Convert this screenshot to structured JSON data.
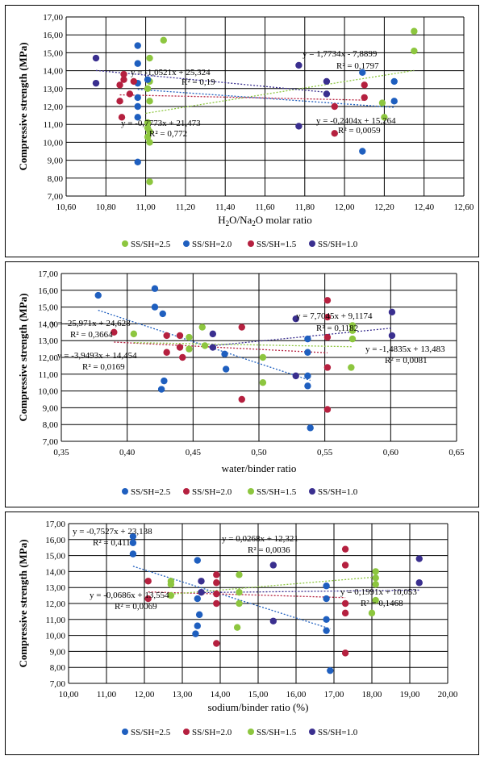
{
  "colors": {
    "ss25": "#8dc63f",
    "ss20": "#1f5fbf",
    "ss15": "#b5203f",
    "ss10": "#3a2f8f"
  },
  "chart_data": [
    {
      "type": "scatter",
      "xlabel": "H2O/Na2O molar ratio",
      "ylabel": "Compressive strength (MPa)",
      "xlim": [
        10.6,
        12.6
      ],
      "ylim": [
        7.0,
        17.0
      ],
      "x_ticks": [
        "10,60",
        "10,80",
        "11,00",
        "11,20",
        "11,40",
        "11,60",
        "11,80",
        "12,00",
        "12,20",
        "12,40",
        "12,60"
      ],
      "y_ticks": [
        "7,00",
        "8,00",
        "9,00",
        "10,00",
        "11,00",
        "12,00",
        "13,00",
        "14,00",
        "15,00",
        "16,00",
        "17,00"
      ],
      "legend": [
        "SS/SH=2.5",
        "SS/SH=2.0",
        "SS/SH=1.5",
        "SS/SH=1.0"
      ],
      "series": [
        {
          "name": "SS/SH=2.5",
          "color_key": "ss25",
          "points": [
            [
              11.09,
              15.7
            ],
            [
              11.02,
              14.7
            ],
            [
              11.02,
              13.4
            ],
            [
              11.01,
              13.0
            ],
            [
              11.02,
              12.3
            ],
            [
              11.01,
              11.1
            ],
            [
              11.01,
              10.8
            ],
            [
              11.02,
              10.6
            ],
            [
              11.01,
              10.3
            ],
            [
              11.02,
              10.0
            ],
            [
              11.02,
              7.8
            ],
            [
              12.35,
              16.2
            ],
            [
              12.35,
              15.1
            ],
            [
              12.19,
              12.2
            ],
            [
              12.2,
              11.4
            ]
          ],
          "fit": [
            11.0,
            12.35
          ],
          "equation": "y = 1,7734x - 7,8899",
          "r2": "R² = 0,1797"
        },
        {
          "name": "SS/SH=2.0",
          "color_key": "ss20",
          "points": [
            [
              10.96,
              15.4
            ],
            [
              10.96,
              14.4
            ],
            [
              10.96,
              13.3
            ],
            [
              10.96,
              12.5
            ],
            [
              10.96,
              12.0
            ],
            [
              10.96,
              11.4
            ],
            [
              10.96,
              8.9
            ],
            [
              11.01,
              13.5
            ],
            [
              12.09,
              13.9
            ],
            [
              12.09,
              9.5
            ],
            [
              12.25,
              13.4
            ],
            [
              12.25,
              12.3
            ]
          ],
          "fit": [
            10.96,
            12.25
          ],
          "equation": "y = -0,7773x + 21,473",
          "r2": "R² = 0,772"
        },
        {
          "name": "SS/SH=1.5",
          "color_key": "ss15",
          "points": [
            [
              10.89,
              13.8
            ],
            [
              10.89,
              13.5
            ],
            [
              10.87,
              13.2
            ],
            [
              10.94,
              13.4
            ],
            [
              10.87,
              12.3
            ],
            [
              10.88,
              11.4
            ],
            [
              10.92,
              12.7
            ],
            [
              11.95,
              12.0
            ],
            [
              11.95,
              10.5
            ],
            [
              12.1,
              12.5
            ],
            [
              12.1,
              13.2
            ]
          ],
          "fit": [
            10.87,
            12.1
          ],
          "equation": "y = -0,2404x + 15,264",
          "r2": "R² = 0,0059"
        },
        {
          "name": "SS/SH=1.0",
          "color_key": "ss10",
          "points": [
            [
              10.75,
              14.7
            ],
            [
              10.75,
              13.3
            ],
            [
              11.77,
              14.3
            ],
            [
              11.77,
              10.9
            ],
            [
              11.91,
              13.4
            ],
            [
              11.91,
              12.7
            ]
          ],
          "fit": [
            10.75,
            11.91
          ],
          "equation": "y = -1,0521x + 25,324",
          "r2": "R² = 0,19"
        }
      ]
    },
    {
      "type": "scatter",
      "xlabel": "water/binder ratio",
      "ylabel": "Compressive strength (MPa)",
      "xlim": [
        0.35,
        0.65
      ],
      "ylim": [
        7.0,
        17.0
      ],
      "x_ticks": [
        "0,35",
        "0,40",
        "0,45",
        "0,50",
        "0,55",
        "0,60",
        "0,65"
      ],
      "y_ticks": [
        "7,00",
        "8,00",
        "9,00",
        "10,00",
        "11,00",
        "12,00",
        "13,00",
        "14,00",
        "15,00",
        "16,00",
        "17,00"
      ],
      "legend": [
        "SS/SH=2.5",
        "SS/SH=2.0",
        "SS/SH=1.5",
        "SS/SH=1.0"
      ],
      "series": [
        {
          "name": "SS/SH=2.5",
          "color_key": "ss20",
          "points": [
            [
              0.378,
              15.7
            ],
            [
              0.421,
              16.1
            ],
            [
              0.421,
              15.0
            ],
            [
              0.427,
              14.6
            ],
            [
              0.426,
              10.1
            ],
            [
              0.428,
              10.6
            ],
            [
              0.475,
              11.3
            ],
            [
              0.474,
              12.2
            ],
            [
              0.537,
              13.1
            ],
            [
              0.537,
              12.3
            ],
            [
              0.537,
              10.9
            ],
            [
              0.537,
              10.3
            ],
            [
              0.539,
              7.8
            ]
          ],
          "fit": [
            0.378,
            0.539
          ],
          "equation": "y = -25,971x + 24,628",
          "r2": "R² = 0,3664"
        },
        {
          "name": "SS/SH=2.0",
          "color_key": "ss15",
          "points": [
            [
              0.39,
              13.5
            ],
            [
              0.43,
              13.3
            ],
            [
              0.43,
              12.3
            ],
            [
              0.44,
              13.3
            ],
            [
              0.44,
              12.6
            ],
            [
              0.442,
              12.0
            ],
            [
              0.487,
              13.8
            ],
            [
              0.487,
              9.5
            ],
            [
              0.552,
              15.4
            ],
            [
              0.552,
              14.4
            ],
            [
              0.552,
              13.2
            ],
            [
              0.552,
              11.4
            ],
            [
              0.552,
              8.9
            ]
          ],
          "fit": [
            0.39,
            0.552
          ],
          "equation": "y = -3,9493x + 14,454",
          "r2": "R² = 0,0169"
        },
        {
          "name": "SS/SH=1.5",
          "color_key": "ss25",
          "points": [
            [
              0.405,
              13.4
            ],
            [
              0.447,
              13.2
            ],
            [
              0.447,
              12.5
            ],
            [
              0.457,
              13.8
            ],
            [
              0.459,
              12.7
            ],
            [
              0.503,
              12.0
            ],
            [
              0.503,
              10.5
            ],
            [
              0.571,
              13.9
            ],
            [
              0.571,
              13.6
            ],
            [
              0.571,
              13.1
            ],
            [
              0.57,
              11.4
            ]
          ],
          "fit": [
            0.405,
            0.571
          ],
          "equation": "y = -1,4835x + 13,483",
          "r2": "R² = 0,0081"
        },
        {
          "name": "SS/SH=1.0",
          "color_key": "ss10",
          "points": [
            [
              0.465,
              13.4
            ],
            [
              0.465,
              12.6
            ],
            [
              0.528,
              14.3
            ],
            [
              0.528,
              10.9
            ],
            [
              0.601,
              14.7
            ],
            [
              0.601,
              13.3
            ]
          ],
          "fit": [
            0.465,
            0.601
          ],
          "equation": "y = 7,7045x + 9,1174",
          "r2": "R² = 0,1182"
        }
      ]
    },
    {
      "type": "scatter",
      "xlabel": "sodium/binder ratio (%)",
      "ylabel": "Compressive strength (MPa)",
      "xlim": [
        10.0,
        20.0
      ],
      "ylim": [
        7.0,
        17.0
      ],
      "x_ticks": [
        "10,00",
        "11,00",
        "12,00",
        "13,00",
        "14,00",
        "15,00",
        "16,00",
        "17,00",
        "18,00",
        "19,00",
        "20,00"
      ],
      "y_ticks": [
        "7,00",
        "8,00",
        "9,00",
        "10,00",
        "11,00",
        "12,00",
        "13,00",
        "14,00",
        "15,00",
        "16,00",
        "17,00"
      ],
      "legend": [
        "SS/SH=2.5",
        "SS/SH=2.0",
        "SS/SH=1.5",
        "SS/SH=1.0"
      ],
      "series": [
        {
          "name": "SS/SH=2.5",
          "color_key": "ss20",
          "points": [
            [
              11.7,
              16.2
            ],
            [
              11.7,
              15.8
            ],
            [
              11.7,
              15.1
            ],
            [
              13.4,
              14.7
            ],
            [
              13.4,
              12.3
            ],
            [
              13.45,
              11.3
            ],
            [
              13.4,
              10.6
            ],
            [
              13.35,
              10.1
            ],
            [
              16.8,
              13.1
            ],
            [
              16.8,
              12.3
            ],
            [
              16.8,
              11.0
            ],
            [
              16.8,
              10.3
            ],
            [
              16.9,
              7.8
            ]
          ],
          "fit": [
            11.7,
            16.9
          ],
          "equation": "y = -0,7527x + 23,138",
          "r2": "R² = 0,411"
        },
        {
          "name": "SS/SH=2.0",
          "color_key": "ss15",
          "points": [
            [
              12.1,
              13.4
            ],
            [
              12.1,
              12.3
            ],
            [
              13.9,
              13.8
            ],
            [
              13.9,
              13.3
            ],
            [
              13.9,
              12.6
            ],
            [
              13.9,
              12.0
            ],
            [
              13.9,
              9.5
            ],
            [
              17.3,
              15.4
            ],
            [
              17.3,
              14.4
            ],
            [
              17.3,
              12.0
            ],
            [
              17.3,
              11.4
            ],
            [
              17.3,
              8.9
            ]
          ],
          "fit": [
            12.1,
            17.3
          ],
          "equation": "y = -0,0686x + 13,554",
          "r2": "R² = 0,0069"
        },
        {
          "name": "SS/SH=1.5",
          "color_key": "ss25",
          "points": [
            [
              12.7,
              13.4
            ],
            [
              12.7,
              13.2
            ],
            [
              12.7,
              12.5
            ],
            [
              14.5,
              13.8
            ],
            [
              14.5,
              12.7
            ],
            [
              14.5,
              12.0
            ],
            [
              14.45,
              10.5
            ],
            [
              18.1,
              14.0
            ],
            [
              18.1,
              13.6
            ],
            [
              18.1,
              13.2
            ],
            [
              18.0,
              11.4
            ],
            [
              18.1,
              12.2
            ]
          ],
          "fit": [
            12.7,
            18.1
          ],
          "equation": "y = 0,1991x + 10,053",
          "r2": "R² = 0,1468"
        },
        {
          "name": "SS/SH=1.0",
          "color_key": "ss10",
          "points": [
            [
              13.5,
              13.4
            ],
            [
              13.5,
              12.7
            ],
            [
              15.4,
              14.4
            ],
            [
              15.4,
              10.9
            ],
            [
              19.25,
              14.8
            ],
            [
              19.25,
              13.3
            ]
          ],
          "fit": [
            13.5,
            19.25
          ],
          "equation": "y = 0,0268x + 12,321",
          "r2": "R² = 0,0036"
        }
      ]
    }
  ]
}
